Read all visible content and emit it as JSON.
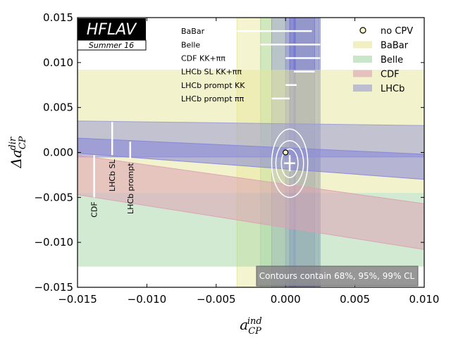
{
  "chart_data": {
    "type": "scatter",
    "xlabel": "a_CP^ind",
    "ylabel": "Δa_CP^dir",
    "xlim": [
      -0.015,
      0.01
    ],
    "ylim": [
      -0.015,
      0.015
    ],
    "xticks": [
      "−0.015",
      "−0.010",
      "−0.005",
      "0.000",
      "0.005",
      "0.010"
    ],
    "yticks": [
      "0.015",
      "0.010",
      "0.005",
      "0.000",
      "−0.005",
      "−0.010",
      "−0.015"
    ],
    "logo": {
      "name": "HFLAV",
      "subtitle": "Summer 16"
    },
    "contour_note": "Contours contain 68%, 95%, 99% CL",
    "legend": {
      "placement": "top-right",
      "entries": [
        {
          "label": "no CPV",
          "marker": "circle"
        },
        {
          "label": "BaBar",
          "color": "#e6e69a"
        },
        {
          "label": "Belle",
          "color": "#a6d6a6"
        },
        {
          "label": "CDF",
          "color": "#dca0b4"
        },
        {
          "label": "LHCb",
          "color": "#9a9ad4"
        }
      ]
    },
    "no_cpv_point": {
      "x": 0.0,
      "y": 0.0
    },
    "best_fit": {
      "x": 0.0003,
      "y": -0.0012,
      "ex": 0.0004,
      "ey": 0.0009
    },
    "horizontal_bars": [
      {
        "label": "BaBar",
        "x": [
          -0.0035,
          0.0019
        ],
        "y": 0.0135
      },
      {
        "label": "Belle",
        "x": [
          -0.0018,
          0.0025
        ],
        "y": 0.012
      },
      {
        "label": "CDF KK+ππ",
        "x": [
          0.0,
          0.0025
        ],
        "y": 0.0105
      },
      {
        "label": "LHCb SL KK+ππ",
        "x": [
          0.0006,
          0.0021
        ],
        "y": 0.009
      },
      {
        "label": "LHCb prompt KK",
        "x": [
          0.0,
          0.0008
        ],
        "y": 0.0075
      },
      {
        "label": "LHCb prompt ππ",
        "x": [
          -0.001,
          0.0003
        ],
        "y": 0.006
      }
    ],
    "vertical_bars": [
      {
        "label": "CDF",
        "x": -0.0138,
        "y": [
          -0.005,
          -0.0003
        ]
      },
      {
        "label": "LHCb SL",
        "x": -0.0125,
        "y": [
          -0.0003,
          0.0034
        ]
      },
      {
        "label": "LHCb prompt",
        "x": -0.0112,
        "y": [
          -0.0007,
          0.0012
        ]
      }
    ],
    "vertical_bands": [
      {
        "name": "BaBar",
        "x": [
          -0.0035,
          0.0025
        ],
        "color": "#e6e69a"
      },
      {
        "name": "Belle",
        "x": [
          -0.0018,
          0.0025
        ],
        "color": "#a6d6a6"
      },
      {
        "name": "CDF",
        "x": [
          -0.001,
          0.0025
        ],
        "color": "#9a9ad4"
      },
      {
        "name": "LHCb",
        "x": [
          0.0,
          0.0024
        ],
        "color": "#8e8ed0"
      },
      {
        "name": "LHCb",
        "x": [
          0.0006,
          0.0021
        ],
        "color": "#7e7ec8"
      },
      {
        "name": "LHCb",
        "x": [
          0.0003,
          0.0007
        ],
        "color": "#6a6ad8"
      }
    ],
    "horizontal_bands": [
      {
        "name": "BaBar",
        "y": [
          -0.0045,
          0.0092
        ],
        "color": "#e6e69a"
      },
      {
        "name": "Belle",
        "y": [
          -0.0127,
          -0.0045
        ],
        "color": "#a6d6a6"
      }
    ],
    "diagonal_bands": [
      {
        "name": "LHCb",
        "x": [
          -0.015,
          0.01
        ],
        "top": [
          0.0035,
          0.003
        ],
        "bottom": [
          -0.0005,
          -0.0005
        ],
        "color": "#9a9ad4"
      },
      {
        "name": "CDF",
        "x": [
          -0.015,
          0.01
        ],
        "top": [
          -0.0003,
          -0.0057
        ],
        "bottom": [
          -0.0047,
          -0.0108
        ],
        "color": "#dca0b4"
      },
      {
        "name": "LHCb",
        "x": [
          -0.015,
          0.01
        ],
        "top": [
          0.0016,
          -0.0002
        ],
        "bottom": [
          -0.0001,
          -0.003
        ],
        "color": "#8484d8"
      }
    ],
    "contours": [
      {
        "cl": "68%",
        "rx": 0.0006,
        "ry": 0.0016
      },
      {
        "cl": "95%",
        "rx": 0.001,
        "ry": 0.0025
      },
      {
        "cl": "99%",
        "rx": 0.0013,
        "ry": 0.0038
      }
    ]
  }
}
